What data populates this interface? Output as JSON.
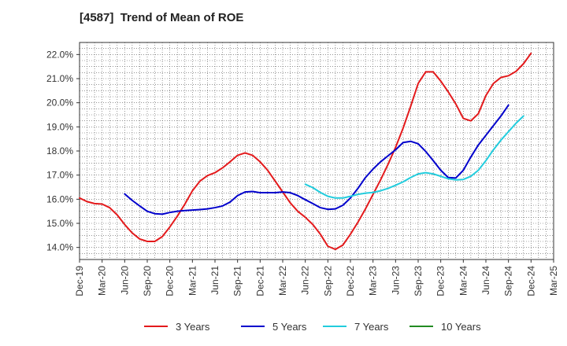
{
  "chart_data": {
    "type": "line",
    "title": "[4587]  Trend of Mean of ROE",
    "xlabel": "",
    "ylabel": "",
    "y_unit": "%",
    "ylim": [
      13.5,
      22.5
    ],
    "y_ticks": [
      "14.0%",
      "15.0%",
      "16.0%",
      "17.0%",
      "18.0%",
      "19.0%",
      "20.0%",
      "21.0%",
      "22.0%"
    ],
    "x_ticks": [
      "Dec-19",
      "Mar-20",
      "Jun-20",
      "Sep-20",
      "Dec-20",
      "Mar-21",
      "Jun-21",
      "Sep-21",
      "Dec-21",
      "Mar-22",
      "Jun-22",
      "Sep-22",
      "Dec-22",
      "Mar-23",
      "Jun-23",
      "Sep-23",
      "Dec-23",
      "Mar-24",
      "Jun-24",
      "Sep-24",
      "Dec-24",
      "Mar-25"
    ],
    "grid": true,
    "legend_position": "bottom",
    "series": [
      {
        "name": "3 Years",
        "color": "#e31a1c",
        "start_month": 0,
        "values": [
          16.05,
          15.9,
          15.82,
          15.8,
          15.65,
          15.35,
          14.95,
          14.6,
          14.35,
          14.25,
          14.25,
          14.45,
          14.85,
          15.3,
          15.8,
          16.35,
          16.75,
          16.98,
          17.1,
          17.3,
          17.55,
          17.82,
          17.92,
          17.82,
          17.55,
          17.2,
          16.75,
          16.3,
          15.85,
          15.5,
          15.25,
          14.95,
          14.55,
          14.05,
          13.92,
          14.1,
          14.55,
          15.05,
          15.6,
          16.2,
          16.8,
          17.45,
          18.15,
          18.95,
          19.85,
          20.8,
          21.28,
          21.28,
          20.9,
          20.45,
          19.95,
          19.35,
          19.25,
          19.55,
          20.3,
          20.8,
          21.05,
          21.12,
          21.3,
          21.62,
          22.05
        ]
      },
      {
        "name": "5 Years",
        "color": "#0000cc",
        "start_month": 6,
        "values": [
          16.22,
          15.95,
          15.72,
          15.5,
          15.4,
          15.38,
          15.45,
          15.5,
          15.53,
          15.55,
          15.57,
          15.6,
          15.65,
          15.72,
          15.88,
          16.15,
          16.3,
          16.32,
          16.27,
          16.27,
          16.27,
          16.3,
          16.27,
          16.15,
          15.98,
          15.82,
          15.65,
          15.58,
          15.6,
          15.75,
          16.05,
          16.45,
          16.9,
          17.25,
          17.55,
          17.8,
          18.05,
          18.35,
          18.4,
          18.3,
          17.98,
          17.6,
          17.2,
          16.9,
          16.88,
          17.2,
          17.75,
          18.25,
          18.65,
          19.05,
          19.45,
          19.9
        ]
      },
      {
        "name": "7 Years",
        "color": "#22ccdd",
        "start_month": 30,
        "values": [
          16.62,
          16.48,
          16.28,
          16.12,
          16.05,
          16.05,
          16.12,
          16.2,
          16.25,
          16.28,
          16.35,
          16.45,
          16.58,
          16.72,
          16.9,
          17.05,
          17.1,
          17.05,
          16.95,
          16.85,
          16.8,
          16.82,
          16.95,
          17.2,
          17.6,
          18.05,
          18.45,
          18.8,
          19.15,
          19.45
        ]
      },
      {
        "name": "10 Years",
        "color": "#228b22",
        "start_month": 0,
        "values": []
      }
    ]
  }
}
